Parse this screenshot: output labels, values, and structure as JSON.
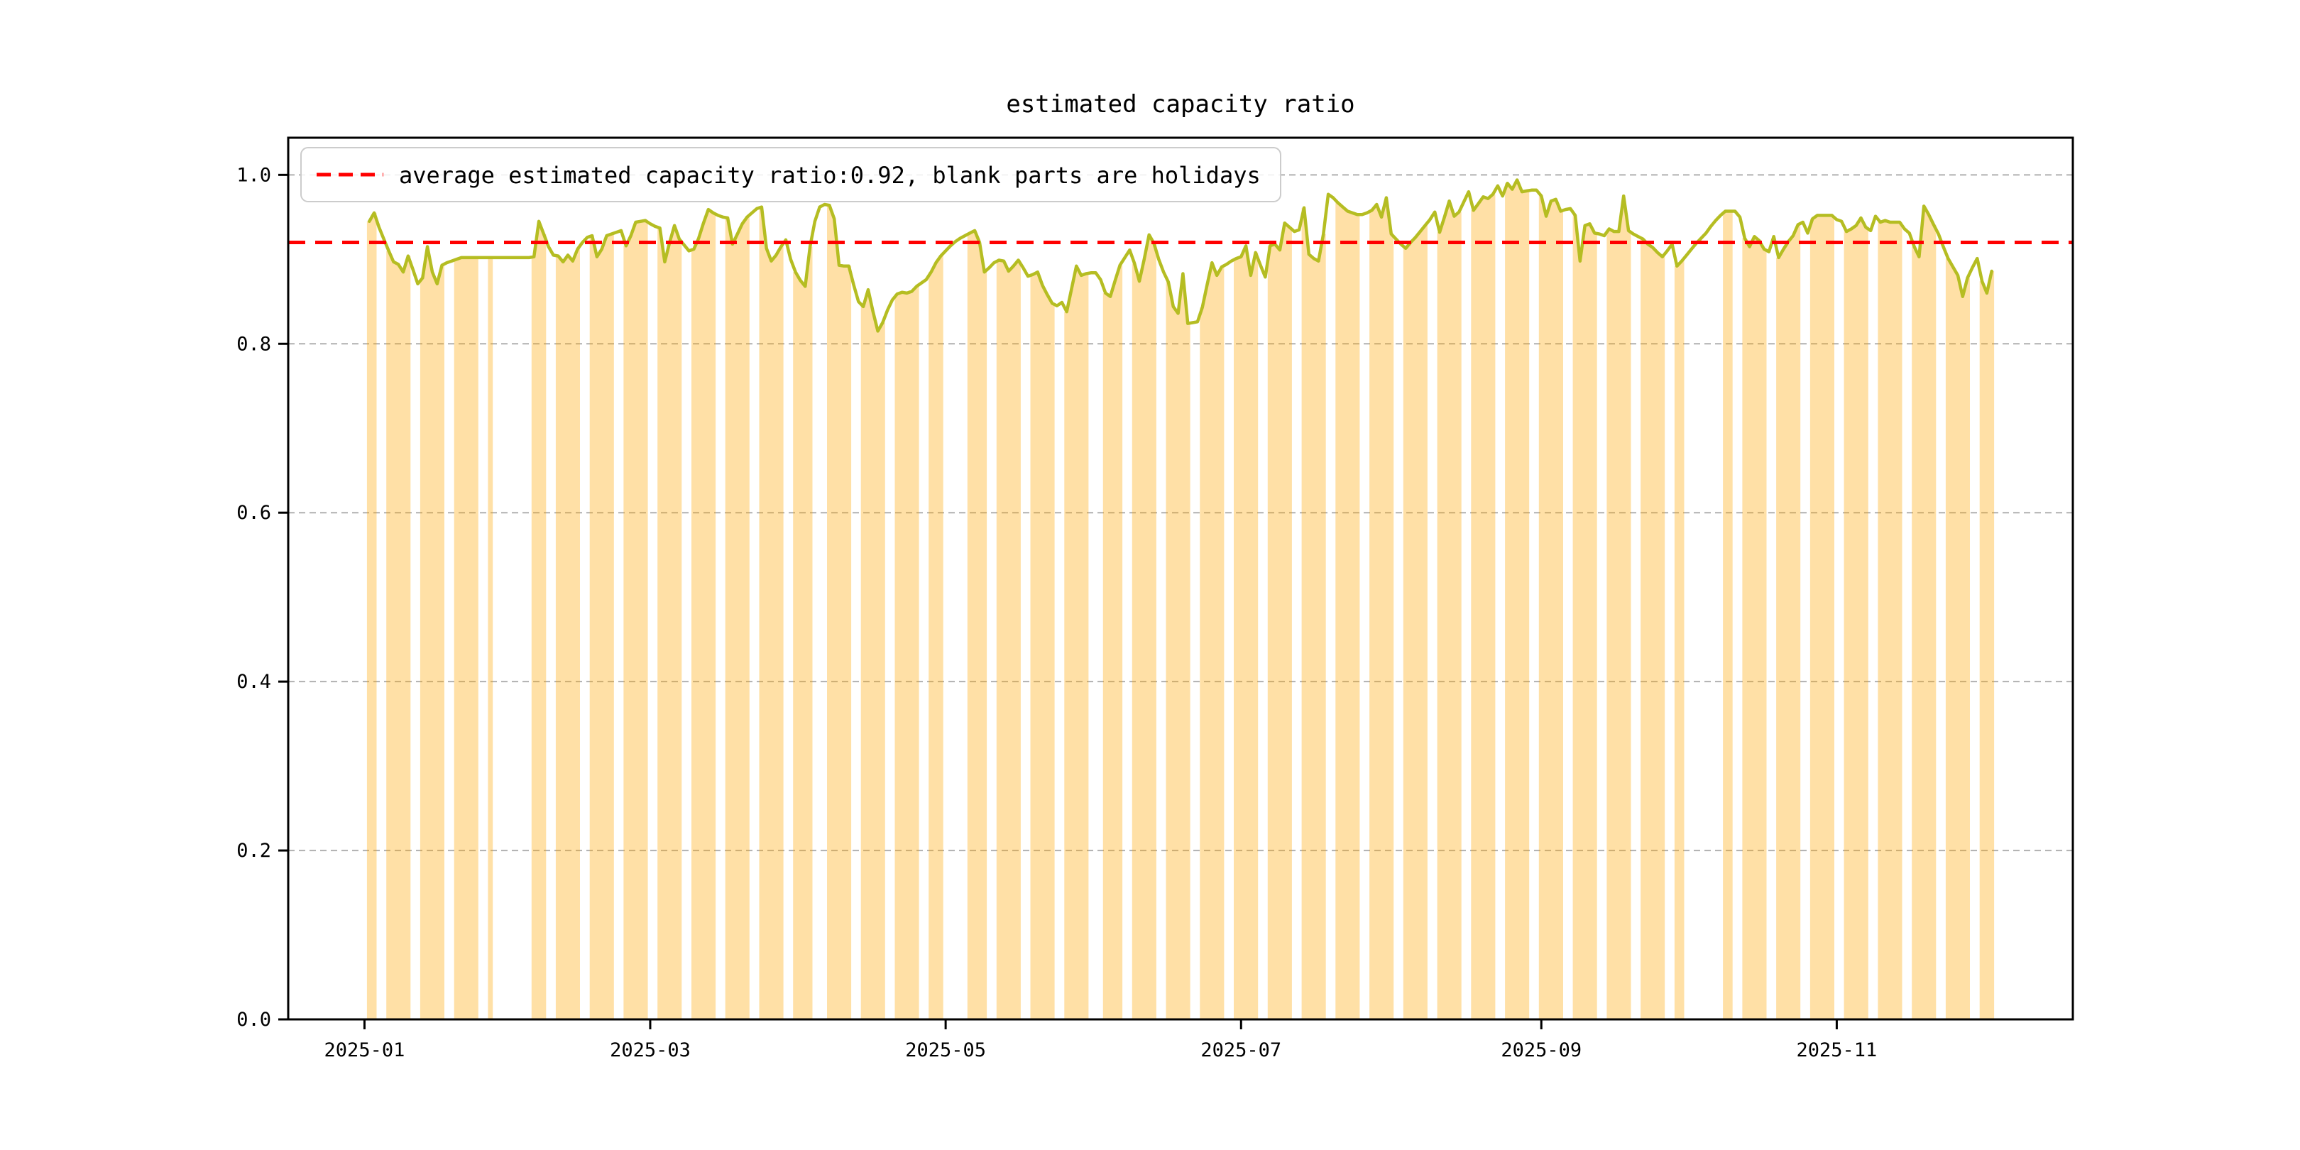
{
  "chart_data": {
    "type": "line",
    "title": "estimated capacity ratio",
    "legend": {
      "label": "average estimated capacity ratio:0.92, blank parts are holidays",
      "line_style": "dashed",
      "position": "upper left"
    },
    "average_value": 0.92,
    "x_ticks": [
      "2025-01",
      "2025-03",
      "2025-05",
      "2025-07",
      "2025-09",
      "2025-11"
    ],
    "y_ticks": [
      0.0,
      0.2,
      0.4,
      0.6,
      0.8,
      1.0
    ],
    "ylim": [
      0.0,
      1.044
    ],
    "grid": true,
    "colors": {
      "line": "#b5bd22",
      "bar": "#FFA500",
      "bar_alpha": 0.35,
      "average_line": "#ff0000",
      "grid_line": "#b0b0b0",
      "axes": "#000000",
      "legend_border": "#cccccc"
    },
    "start_date": "2025-01-02",
    "end_date": "2025-12-03",
    "holidays": [
      "2025-01-01",
      "2025-01-28",
      "2025-01-29",
      "2025-01-30",
      "2025-01-31",
      "2025-02-01",
      "2025-02-02",
      "2025-02-03",
      "2025-02-04",
      "2025-04-04",
      "2025-05-01",
      "2025-05-02",
      "2025-05-05",
      "2025-06-02",
      "2025-10-01",
      "2025-10-02",
      "2025-10-03",
      "2025-10-04",
      "2025-10-05",
      "2025-10-06",
      "2025-10-07",
      "2025-10-08"
    ],
    "series": [
      {
        "name": "estimated capacity ratio",
        "daily_values": [
          0.945,
          0.955,
          0.938,
          0.924,
          0.91,
          0.897,
          0.894,
          0.885,
          0.904,
          0.888,
          0.871,
          0.878,
          0.915,
          0.885,
          0.871,
          0.893,
          0.896,
          0.898,
          0.9,
          0.902,
          0.902,
          0.902,
          0.902,
          0.902,
          0.902,
          0.902,
          0.902,
          0.902,
          0.902,
          0.902,
          0.902,
          0.902,
          0.902,
          0.902,
          0.903,
          0.945,
          0.93,
          0.915,
          0.905,
          0.904,
          0.897,
          0.905,
          0.898,
          0.912,
          0.92,
          0.926,
          0.928,
          0.903,
          0.912,
          0.928,
          0.93,
          0.932,
          0.934,
          0.916,
          0.928,
          0.944,
          0.945,
          0.946,
          0.942,
          0.939,
          0.937,
          0.897,
          0.92,
          0.94,
          0.924,
          0.917,
          0.91,
          0.912,
          0.925,
          0.943,
          0.959,
          0.955,
          0.952,
          0.95,
          0.949,
          0.918,
          0.93,
          0.942,
          0.95,
          0.955,
          0.96,
          0.962,
          0.913,
          0.898,
          0.905,
          0.915,
          0.923,
          0.9,
          0.885,
          0.875,
          0.868,
          0.915,
          0.945,
          0.962,
          0.965,
          0.964,
          0.948,
          0.893,
          0.892,
          0.892,
          0.87,
          0.85,
          0.844,
          0.864,
          0.838,
          0.815,
          0.825,
          0.84,
          0.852,
          0.859,
          0.861,
          0.86,
          0.862,
          0.868,
          0.872,
          0.876,
          0.885,
          0.896,
          0.904,
          0.91,
          0.916,
          0.921,
          0.925,
          0.928,
          0.931,
          0.934,
          0.92,
          0.885,
          0.89,
          0.896,
          0.899,
          0.898,
          0.886,
          0.892,
          0.899,
          0.89,
          0.88,
          0.882,
          0.885,
          0.869,
          0.858,
          0.848,
          0.845,
          0.849,
          0.838,
          0.865,
          0.892,
          0.881,
          0.883,
          0.884,
          0.884,
          0.876,
          0.86,
          0.856,
          0.875,
          0.893,
          0.902,
          0.911,
          0.895,
          0.874,
          0.9,
          0.929,
          0.919,
          0.9,
          0.885,
          0.873,
          0.844,
          0.836,
          0.883,
          0.824,
          0.825,
          0.826,
          0.843,
          0.87,
          0.896,
          0.881,
          0.891,
          0.894,
          0.898,
          0.901,
          0.903,
          0.916,
          0.881,
          0.908,
          0.893,
          0.879,
          0.916,
          0.918,
          0.911,
          0.943,
          0.938,
          0.933,
          0.935,
          0.961,
          0.906,
          0.901,
          0.898,
          0.93,
          0.977,
          0.973,
          0.967,
          0.962,
          0.957,
          0.955,
          0.953,
          0.953,
          0.955,
          0.958,
          0.965,
          0.95,
          0.973,
          0.93,
          0.924,
          0.918,
          0.913,
          0.92,
          0.926,
          0.933,
          0.94,
          0.947,
          0.956,
          0.932,
          0.95,
          0.969,
          0.951,
          0.956,
          0.968,
          0.98,
          0.958,
          0.966,
          0.974,
          0.972,
          0.977,
          0.987,
          0.975,
          0.99,
          0.983,
          0.994,
          0.98,
          0.981,
          0.982,
          0.982,
          0.975,
          0.951,
          0.969,
          0.971,
          0.957,
          0.959,
          0.96,
          0.952,
          0.898,
          0.94,
          0.942,
          0.931,
          0.93,
          0.928,
          0.936,
          0.933,
          0.933,
          0.975,
          0.934,
          0.93,
          0.927,
          0.924,
          0.918,
          0.914,
          0.908,
          0.903,
          0.91,
          0.918,
          0.892,
          0.898,
          0.905,
          0.912,
          0.919,
          0.925,
          0.931,
          0.939,
          0.946,
          0.952,
          0.957,
          0.957,
          0.957,
          0.95,
          0.925,
          0.915,
          0.927,
          0.922,
          0.912,
          0.909,
          0.927,
          0.902,
          0.912,
          0.921,
          0.928,
          0.941,
          0.944,
          0.931,
          0.948,
          0.952,
          0.952,
          0.952,
          0.952,
          0.947,
          0.945,
          0.933,
          0.936,
          0.94,
          0.949,
          0.938,
          0.934,
          0.951,
          0.944,
          0.946,
          0.944,
          0.944,
          0.944,
          0.936,
          0.931,
          0.915,
          0.903,
          0.963,
          0.953,
          0.941,
          0.93,
          0.915,
          0.901,
          0.891,
          0.881,
          0.856,
          0.878,
          0.89,
          0.901,
          0.874,
          0.86,
          0.886
        ]
      }
    ]
  }
}
